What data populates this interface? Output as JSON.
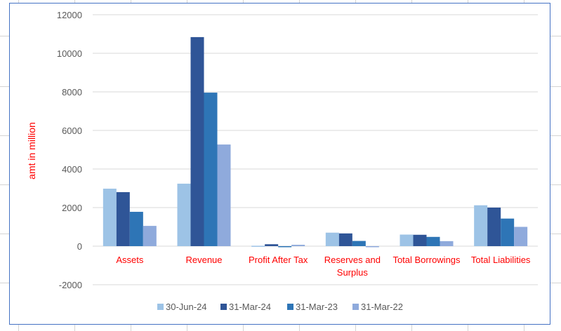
{
  "chart_data": {
    "type": "bar",
    "title": "",
    "xlabel": "",
    "ylabel": "amt in million",
    "ylim": [
      -2000,
      12000
    ],
    "yticks": [
      -2000,
      0,
      2000,
      4000,
      6000,
      8000,
      10000,
      12000
    ],
    "grid": true,
    "legend_position": "bottom",
    "categories": [
      "Assets",
      "Revenue",
      "Profit After Tax",
      "Reserves and Surplus",
      "Total Borrowings",
      "Total Liabilities"
    ],
    "series": [
      {
        "name": "30-Jun-24",
        "color": "#9dc3e6",
        "values": [
          2980,
          3240,
          20,
          700,
          600,
          2120
        ]
      },
      {
        "name": "31-Mar-24",
        "color": "#2f5597",
        "values": [
          2800,
          10840,
          100,
          660,
          590,
          2000
        ]
      },
      {
        "name": "31-Mar-23",
        "color": "#2e75b6",
        "values": [
          1780,
          7960,
          -40,
          270,
          480,
          1430
        ]
      },
      {
        "name": "31-Mar-22",
        "color": "#8faadc",
        "values": [
          1050,
          5270,
          70,
          -50,
          260,
          1000
        ]
      }
    ]
  },
  "labels": {
    "ylabel": "amt in million",
    "ytick_labels": [
      "12000",
      "10000",
      "8000",
      "6000",
      "4000",
      "2000",
      "0",
      "-2000"
    ],
    "category_labels": [
      [
        "Assets"
      ],
      [
        "Revenue"
      ],
      [
        "Profit After Tax"
      ],
      [
        "Reserves and",
        "Surplus"
      ],
      [
        "Total Borrowings"
      ],
      [
        "Total Liabilities"
      ]
    ],
    "legend": [
      "30-Jun-24",
      "31-Mar-24",
      "31-Mar-23",
      "31-Mar-22"
    ]
  },
  "colors": {
    "axis_label": "#ff0000",
    "tick_label": "#595959",
    "gridline": "#d9d9d9",
    "frame": "#4472c4"
  }
}
